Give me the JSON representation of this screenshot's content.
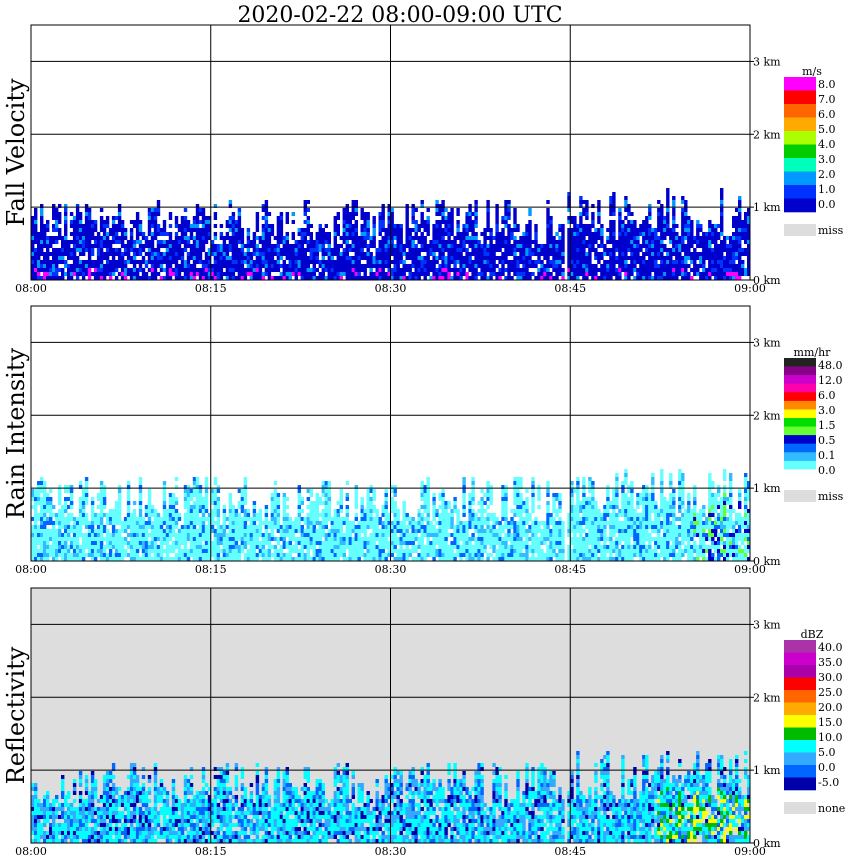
{
  "chart_data": {
    "type": "heatmap",
    "title": "2020-02-22   08:00-09:00 UTC",
    "x_ticks": [
      "08:00",
      "08:15",
      "08:30",
      "08:45",
      "09:00"
    ],
    "x_range_min": [
      0,
      60
    ],
    "y_ticks": [
      "0 km",
      "1 km",
      "2 km",
      "3 km"
    ],
    "y_range_km": [
      0,
      3.5
    ],
    "grid": true,
    "panels": [
      {
        "name": "fall-velocity",
        "ylabel": "Fall Velocity",
        "legend_title": "m/s",
        "legend_labels": [
          "8.0",
          "7.0",
          "6.0",
          "5.0",
          "4.0",
          "3.0",
          "2.0",
          "1.0",
          "0.0"
        ],
        "legend_colors": [
          "#ff00ff",
          "#ff0000",
          "#ff6600",
          "#ffaa00",
          "#aaff00",
          "#00cc00",
          "#00ffbb",
          "#0099ff",
          "#0033ff",
          "#0000cc"
        ],
        "missing_label": "miss",
        "background": "#ffffff",
        "data_extent_km_by_segment": [
          [
            0,
            44.5,
            1.15
          ],
          [
            44.7,
            60,
            1.3
          ]
        ]
      },
      {
        "name": "rain-intensity",
        "ylabel": "Rain Intensity",
        "legend_title": "mm/hr",
        "legend_labels": [
          "48.0",
          "12.0",
          "6.0",
          "3.0",
          "1.5",
          "0.5",
          "0.1",
          "0.0"
        ],
        "legend_colors": [
          "#222222",
          "#880088",
          "#cc00cc",
          "#ff00aa",
          "#ff0000",
          "#ff8800",
          "#ffff00",
          "#00dd00",
          "#66ff33",
          "#0000cc",
          "#0066ff",
          "#33bbff",
          "#66ffff",
          "#ffffff"
        ],
        "missing_label": "miss",
        "background": "#ffffff",
        "data_extent_km_by_segment": [
          [
            0,
            44.5,
            1.2
          ],
          [
            44.7,
            60,
            1.3
          ]
        ]
      },
      {
        "name": "reflectivity",
        "ylabel": "Reflectivity",
        "legend_title": "dBZ",
        "legend_labels": [
          "40.0",
          "35.0",
          "30.0",
          "25.0",
          "20.0",
          "15.0",
          "10.0",
          "5.0",
          "0.0",
          "-5.0"
        ],
        "legend_colors": [
          "#aa33aa",
          "#cc00cc",
          "#aa00aa",
          "#ff0000",
          "#ff6600",
          "#ffaa00",
          "#ffff00",
          "#00bb00",
          "#00ffff",
          "#33aaff",
          "#0066ff",
          "#0000aa"
        ],
        "missing_label": "none",
        "background": "#dddddd",
        "data_extent_km_by_segment": [
          [
            0,
            44.5,
            1.15
          ],
          [
            44.7,
            60,
            1.3
          ]
        ]
      }
    ]
  }
}
